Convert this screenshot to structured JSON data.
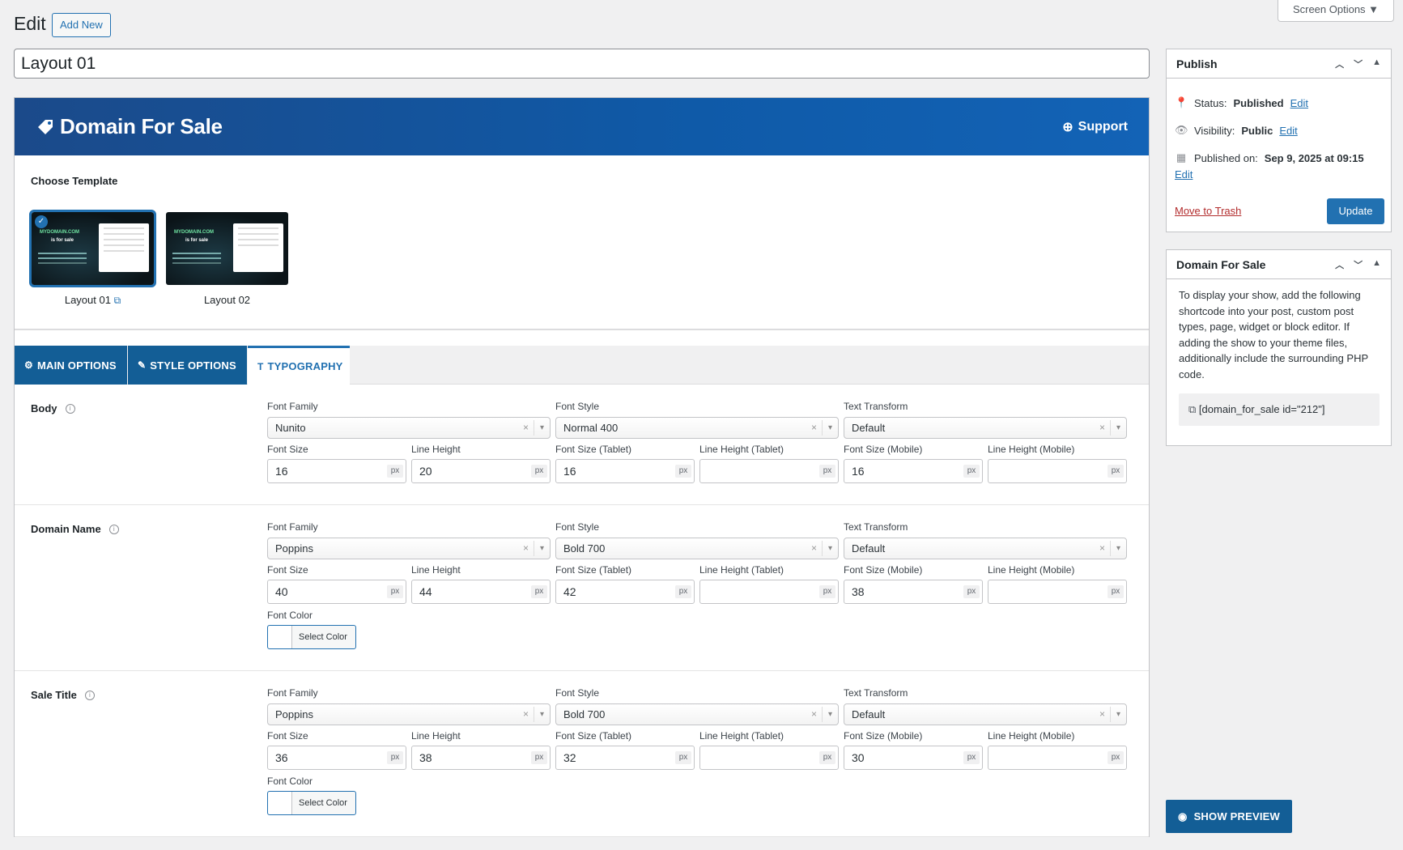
{
  "header": {
    "title": "Edit",
    "add_new": "Add New",
    "screen_options": "Screen Options ▼"
  },
  "post": {
    "title": "Layout 01"
  },
  "banner": {
    "brand": "Domain For Sale",
    "support": "Support"
  },
  "templates": {
    "label": "Choose Template",
    "items": [
      {
        "label": "Layout 01",
        "selected": true
      },
      {
        "label": "Layout 02",
        "selected": false
      }
    ],
    "thumb_text": {
      "domain": "MYDOMAIN.COM",
      "forsale": "is for sale"
    }
  },
  "tabs": [
    {
      "label": "MAIN OPTIONS",
      "icon": "gears-icon",
      "active": false
    },
    {
      "label": "STYLE OPTIONS",
      "icon": "palette-icon",
      "active": false
    },
    {
      "label": "TYPOGRAPHY",
      "icon": "typography-icon",
      "active": true
    }
  ],
  "field_labels": {
    "font_family": "Font Family",
    "font_style": "Font Style",
    "text_transform": "Text Transform",
    "font_size": "Font Size",
    "line_height": "Line Height",
    "font_size_tablet": "Font Size (Tablet)",
    "line_height_tablet": "Line Height (Tablet)",
    "font_size_mobile": "Font Size (Mobile)",
    "line_height_mobile": "Line Height (Mobile)",
    "font_color": "Font Color",
    "select_color": "Select Color",
    "unit": "px"
  },
  "sections": [
    {
      "name": "Body",
      "font_family": "Nunito",
      "font_style": "Normal 400",
      "text_transform": "Default",
      "font_size": "16",
      "line_height": "20",
      "font_size_tablet": "16",
      "line_height_tablet": "",
      "font_size_mobile": "16",
      "line_height_mobile": ""
    },
    {
      "name": "Domain Name",
      "font_family": "Poppins",
      "font_style": "Bold 700",
      "text_transform": "Default",
      "font_size": "40",
      "line_height": "44",
      "font_size_tablet": "42",
      "line_height_tablet": "",
      "font_size_mobile": "38",
      "line_height_mobile": ""
    },
    {
      "name": "Sale Title",
      "font_family": "Poppins",
      "font_style": "Bold 700",
      "text_transform": "Default",
      "font_size": "36",
      "line_height": "38",
      "font_size_tablet": "32",
      "line_height_tablet": "",
      "font_size_mobile": "30",
      "line_height_mobile": ""
    }
  ],
  "publish": {
    "title": "Publish",
    "status_label": "Status:",
    "status_value": "Published",
    "visibility_label": "Visibility:",
    "visibility_value": "Public",
    "published_label": "Published on:",
    "published_value": "Sep 9, 2025 at 09:15",
    "edit": "Edit",
    "trash": "Move to Trash",
    "update": "Update"
  },
  "dfs_box": {
    "title": "Domain For Sale",
    "description": "To display your show, add the following shortcode into your post, custom post types, page, widget or block editor. If adding the show to your theme files, additionally include the surrounding PHP code.",
    "shortcode": "[domain_for_sale id=\"212\"]"
  },
  "preview": {
    "label": "SHOW PREVIEW"
  },
  "colors": {
    "primary": "#2271b1",
    "banner": "#0f5aa8",
    "tab_bg": "#135e96",
    "trash": "#b32d2e"
  }
}
